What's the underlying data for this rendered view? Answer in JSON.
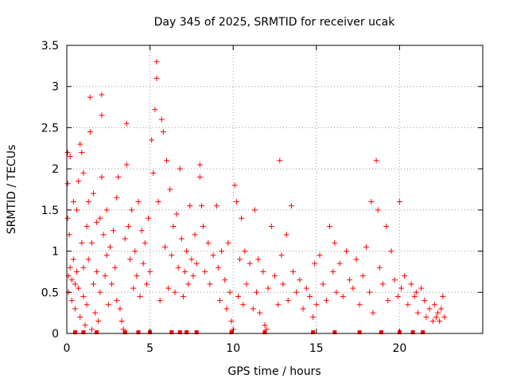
{
  "chart_data": {
    "type": "scatter",
    "title": "Day 345 of 2025, SRMTID for receiver ucak",
    "xlabel": "GPS time / hours",
    "ylabel": "SRMTID / TECUs",
    "xlim": [
      0,
      25
    ],
    "ylim": [
      0,
      3.5
    ],
    "x_ticks": [
      0,
      5,
      10,
      15,
      20
    ],
    "x_tick_labels": [
      "0",
      "5",
      "10",
      "15",
      "20"
    ],
    "y_ticks": [
      0,
      0.5,
      1,
      1.5,
      2,
      2.5,
      3,
      3.5
    ],
    "y_tick_labels": [
      "0",
      "0.5",
      "1",
      "1.5",
      "2",
      "2.5",
      "3",
      "3.5"
    ],
    "grid": true,
    "marker": "plus",
    "colors": {
      "series": "#ff0000",
      "grid": "#999999",
      "axis": "#000000"
    },
    "series": [
      {
        "name": "SRMTID",
        "points": [
          [
            0.05,
            2.2
          ],
          [
            0.05,
            1.82
          ],
          [
            0.05,
            1.4
          ],
          [
            0.1,
            0.7
          ],
          [
            0.1,
            0.5
          ],
          [
            0.15,
            1.2
          ],
          [
            0.2,
            0.8
          ],
          [
            0.2,
            2.15
          ],
          [
            0.3,
            0.65
          ],
          [
            0.3,
            0.4
          ],
          [
            0.4,
            0.9
          ],
          [
            0.4,
            1.6
          ],
          [
            0.5,
            0.6
          ],
          [
            0.5,
            0.3
          ],
          [
            0.6,
            1.5
          ],
          [
            0.6,
            0.75
          ],
          [
            0.7,
            1.85
          ],
          [
            0.7,
            0.55
          ],
          [
            0.8,
            2.3
          ],
          [
            0.8,
            0.2
          ],
          [
            0.9,
            2.2
          ],
          [
            0.9,
            1.1
          ],
          [
            1.0,
            1.95
          ],
          [
            1.0,
            0.8
          ],
          [
            1.0,
            0.45
          ],
          [
            1.1,
            0.1
          ],
          [
            1.2,
            1.3
          ],
          [
            1.2,
            0.35
          ],
          [
            1.3,
            1.6
          ],
          [
            1.3,
            0.9
          ],
          [
            1.4,
            2.87
          ],
          [
            1.4,
            2.45
          ],
          [
            1.5,
            1.1
          ],
          [
            1.5,
            0.05
          ],
          [
            1.6,
            1.7
          ],
          [
            1.6,
            0.6
          ],
          [
            1.7,
            0.25
          ],
          [
            1.8,
            1.35
          ],
          [
            1.8,
            0.75
          ],
          [
            1.9,
            0.15
          ],
          [
            2.0,
            1.4
          ],
          [
            2.0,
            0.5
          ],
          [
            2.1,
            2.9
          ],
          [
            2.1,
            2.65
          ],
          [
            2.1,
            1.9
          ],
          [
            2.2,
            1.2
          ],
          [
            2.3,
            0.7
          ],
          [
            2.4,
            1.5
          ],
          [
            2.4,
            0.95
          ],
          [
            2.5,
            0.35
          ],
          [
            2.6,
            1.05
          ],
          [
            2.7,
            0.6
          ],
          [
            2.8,
            1.25
          ],
          [
            2.9,
            0.8
          ],
          [
            3.0,
            1.65
          ],
          [
            3.0,
            0.4
          ],
          [
            3.1,
            1.9
          ],
          [
            3.2,
            0.3
          ],
          [
            3.3,
            0.15
          ],
          [
            3.4,
            0.05
          ],
          [
            3.5,
            1.15
          ],
          [
            3.6,
            2.55
          ],
          [
            3.6,
            2.05
          ],
          [
            3.7,
            1.3
          ],
          [
            3.8,
            0.9
          ],
          [
            3.9,
            1.5
          ],
          [
            4.0,
            0.55
          ],
          [
            4.1,
            1.0
          ],
          [
            4.2,
            0.7
          ],
          [
            4.3,
            1.6
          ],
          [
            4.4,
            0.45
          ],
          [
            4.5,
            1.25
          ],
          [
            4.6,
            0.85
          ],
          [
            4.7,
            1.1
          ],
          [
            4.8,
            0.6
          ],
          [
            4.9,
            1.4
          ],
          [
            5.0,
            0.75
          ],
          [
            5.1,
            2.35
          ],
          [
            5.2,
            1.95
          ],
          [
            5.3,
            2.72
          ],
          [
            5.4,
            3.3
          ],
          [
            5.4,
            3.1
          ],
          [
            5.5,
            1.6
          ],
          [
            5.6,
            0.4
          ],
          [
            5.7,
            2.6
          ],
          [
            5.8,
            2.45
          ],
          [
            5.9,
            1.05
          ],
          [
            6.0,
            2.1
          ],
          [
            6.1,
            0.55
          ],
          [
            6.2,
            1.75
          ],
          [
            6.3,
            0.95
          ],
          [
            6.4,
            1.3
          ],
          [
            6.5,
            0.5
          ],
          [
            6.6,
            1.45
          ],
          [
            6.7,
            0.8
          ],
          [
            6.8,
            2.0
          ],
          [
            6.9,
            1.15
          ],
          [
            7.0,
            0.45
          ],
          [
            7.1,
            0.75
          ],
          [
            7.2,
            1.0
          ],
          [
            7.3,
            0.6
          ],
          [
            7.4,
            1.55
          ],
          [
            7.5,
            0.9
          ],
          [
            7.6,
            0.7
          ],
          [
            7.7,
            1.2
          ],
          [
            7.8,
            0.85
          ],
          [
            8.0,
            2.05
          ],
          [
            8.0,
            1.9
          ],
          [
            8.1,
            1.55
          ],
          [
            8.2,
            1.3
          ],
          [
            8.3,
            0.75
          ],
          [
            8.5,
            1.1
          ],
          [
            8.6,
            0.6
          ],
          [
            8.8,
            0.95
          ],
          [
            9.0,
            1.55
          ],
          [
            9.1,
            0.8
          ],
          [
            9.2,
            0.4
          ],
          [
            9.3,
            1.0
          ],
          [
            9.5,
            0.65
          ],
          [
            9.6,
            0.3
          ],
          [
            9.7,
            1.1
          ],
          [
            9.8,
            0.5
          ],
          [
            9.9,
            0.15
          ],
          [
            10.0,
            0.05
          ],
          [
            10.1,
            1.8
          ],
          [
            10.2,
            1.6
          ],
          [
            10.3,
            0.45
          ],
          [
            10.4,
            0.9
          ],
          [
            10.5,
            1.4
          ],
          [
            10.6,
            0.35
          ],
          [
            10.7,
            1.0
          ],
          [
            10.8,
            0.6
          ],
          [
            11.0,
            0.85
          ],
          [
            11.2,
            0.3
          ],
          [
            11.3,
            1.5
          ],
          [
            11.4,
            0.5
          ],
          [
            11.5,
            0.9
          ],
          [
            11.6,
            0.25
          ],
          [
            11.8,
            0.75
          ],
          [
            11.9,
            0.1
          ],
          [
            12.0,
            0.05
          ],
          [
            12.1,
            0.55
          ],
          [
            12.3,
            1.3
          ],
          [
            12.5,
            0.7
          ],
          [
            12.7,
            0.35
          ],
          [
            12.8,
            2.1
          ],
          [
            12.9,
            0.95
          ],
          [
            13.0,
            0.6
          ],
          [
            13.2,
            1.2
          ],
          [
            13.3,
            0.4
          ],
          [
            13.5,
            1.55
          ],
          [
            13.6,
            0.75
          ],
          [
            13.8,
            0.5
          ],
          [
            14.0,
            0.65
          ],
          [
            14.2,
            0.3
          ],
          [
            14.4,
            0.55
          ],
          [
            14.6,
            0.45
          ],
          [
            14.8,
            0.2
          ],
          [
            14.9,
            0.85
          ],
          [
            15.0,
            0.35
          ],
          [
            15.2,
            0.95
          ],
          [
            15.4,
            0.6
          ],
          [
            15.6,
            0.4
          ],
          [
            15.8,
            1.3
          ],
          [
            16.0,
            0.75
          ],
          [
            16.1,
            1.1
          ],
          [
            16.2,
            0.5
          ],
          [
            16.4,
            0.85
          ],
          [
            16.6,
            0.45
          ],
          [
            16.8,
            1.0
          ],
          [
            17.0,
            0.65
          ],
          [
            17.2,
            0.55
          ],
          [
            17.4,
            0.9
          ],
          [
            17.6,
            0.35
          ],
          [
            17.8,
            0.7
          ],
          [
            18.0,
            1.05
          ],
          [
            18.2,
            0.5
          ],
          [
            18.3,
            1.6
          ],
          [
            18.4,
            0.25
          ],
          [
            18.6,
            2.1
          ],
          [
            18.7,
            1.5
          ],
          [
            18.8,
            0.8
          ],
          [
            19.0,
            0.6
          ],
          [
            19.2,
            1.3
          ],
          [
            19.3,
            0.4
          ],
          [
            19.5,
            1.0
          ],
          [
            19.7,
            0.65
          ],
          [
            19.9,
            0.45
          ],
          [
            20.0,
            1.6
          ],
          [
            20.1,
            0.55
          ],
          [
            20.3,
            0.7
          ],
          [
            20.5,
            0.35
          ],
          [
            20.7,
            0.6
          ],
          [
            20.9,
            0.45
          ],
          [
            21.0,
            0.5
          ],
          [
            21.1,
            0.25
          ],
          [
            21.3,
            0.55
          ],
          [
            21.5,
            0.4
          ],
          [
            21.6,
            0.2
          ],
          [
            21.8,
            0.3
          ],
          [
            22.0,
            0.15
          ],
          [
            22.1,
            0.35
          ],
          [
            22.2,
            0.2
          ],
          [
            22.3,
            0.25
          ],
          [
            22.4,
            0.15
          ],
          [
            22.5,
            0.3
          ],
          [
            22.6,
            0.45
          ],
          [
            22.7,
            0.2
          ]
        ],
        "zero_points": [
          0.5,
          1.0,
          1.8,
          3.5,
          4.3,
          5.0,
          6.3,
          6.8,
          7.2,
          7.8,
          9.9,
          11.9,
          14.8,
          16.1,
          17.6,
          18.9,
          20.0,
          20.8,
          21.4
        ]
      }
    ]
  }
}
